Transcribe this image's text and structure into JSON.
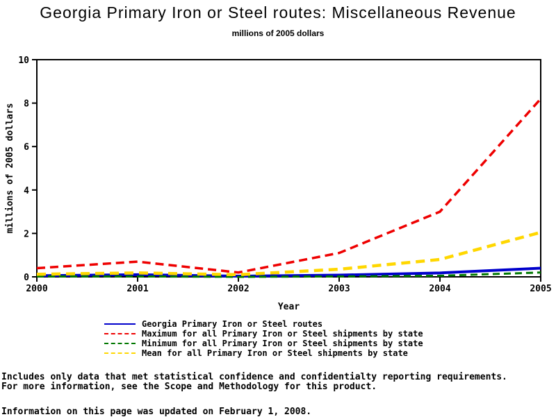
{
  "page": {
    "background": "#FFFFFF"
  },
  "footnotes": [
    "Includes only data that met statistical confidence and confidentialty reporting requirements.",
    "For more information, see the Scope and Methodology for this product.",
    "Information on this page was updated on February 1, 2008."
  ],
  "chart_data": {
    "type": "line",
    "title": "Georgia Primary Iron or Steel routes: Miscellaneous Revenue",
    "subtitle": "millions of 2005 dollars",
    "xlabel": "Year",
    "ylabel": "millions of 2005 dollars",
    "x": [
      2000,
      2001,
      2002,
      2003,
      2004,
      2005
    ],
    "x_ticks": [
      "2000",
      "2001",
      "2002",
      "2003",
      "2004",
      "2005"
    ],
    "y_ticks": [
      "0",
      "2",
      "4",
      "6",
      "8",
      "10"
    ],
    "ylim": [
      0,
      10
    ],
    "grid": false,
    "frame": true,
    "legend_position": "bottom",
    "axis_color": "#000000",
    "series": [
      {
        "name": "Georgia Primary Iron or Steel routes",
        "color": "#0000CC",
        "style": "solid",
        "values": [
          0.05,
          0.1,
          0.03,
          0.08,
          0.18,
          0.4
        ]
      },
      {
        "name": "Maximum for all Primary Iron or Steel shipments by state",
        "color": "#EE0000",
        "style": "dashed",
        "values": [
          0.4,
          0.7,
          0.2,
          1.1,
          3.0,
          8.2
        ]
      },
      {
        "name": "Minimum for all Primary Iron or Steel shipments by state",
        "color": "#007700",
        "style": "dashed",
        "values": [
          0.02,
          0.02,
          0.0,
          0.02,
          0.05,
          0.2
        ]
      },
      {
        "name": "Mean for all Primary Iron or Steel shipments by state",
        "color": "#FFD700",
        "style": "dashed",
        "values": [
          0.12,
          0.18,
          0.1,
          0.35,
          0.8,
          2.05
        ]
      }
    ]
  }
}
